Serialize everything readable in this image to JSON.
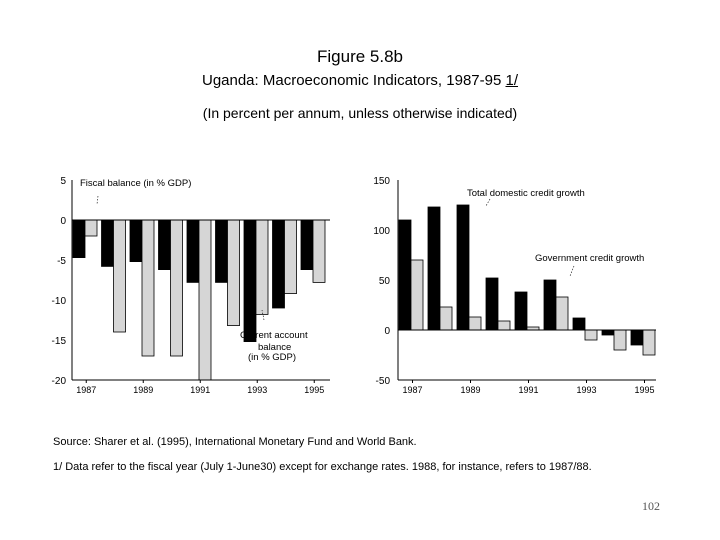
{
  "figure": {
    "title": "Figure 5.8b",
    "subtitle_text": "Uganda: Macroeconomic Indicators, 1987-95 ",
    "subtitle_note": "1/",
    "units_note": "(In percent per annum, unless otherwise indicated)",
    "source": "Source: Sharer et al. (1995), International Monetary Fund and World Bank.",
    "footnote": "1/  Data refer to the fiscal year (July 1-June30) except for exchange rates. 1988, for instance, refers to 1987/88.",
    "page_number": "102"
  },
  "colors": {
    "dark": "#000000",
    "light": "#d6d6d6",
    "axis": "#000000"
  },
  "chart_data": [
    {
      "type": "bar",
      "categories": [
        "1987",
        "1988",
        "1989",
        "1990",
        "1991",
        "1992",
        "1993",
        "1994",
        "1995"
      ],
      "x_tick_labels": [
        "1987",
        "1989",
        "1991",
        "1993",
        "1995"
      ],
      "ylim": [
        -20,
        5
      ],
      "y_ticks": [
        5,
        0,
        -5,
        -10,
        -15,
        -20
      ],
      "series": [
        {
          "name": "Fiscal balance (in % GDP)",
          "color": "dark",
          "values": [
            -4.7,
            -5.8,
            -5.2,
            -6.2,
            -7.8,
            -7.8,
            -15.2,
            -11,
            -6.2
          ]
        },
        {
          "name": "Current account balance (in % GDP)",
          "color": "light",
          "values": [
            -2,
            -14,
            -17,
            -17,
            -20,
            -13.2,
            -11.8,
            -9.2,
            -7.8
          ]
        }
      ],
      "annotations": [
        "Fiscal balance (in % GDP)",
        "Current account",
        "balance",
        "(in % GDP)"
      ]
    },
    {
      "type": "bar",
      "categories": [
        "1987",
        "1988",
        "1989",
        "1990",
        "1991",
        "1992",
        "1993",
        "1994",
        "1995"
      ],
      "x_tick_labels": [
        "1987",
        "1989",
        "1991",
        "1993",
        "1995"
      ],
      "ylim": [
        -50,
        150
      ],
      "y_ticks": [
        150,
        100,
        50,
        0,
        -50
      ],
      "series": [
        {
          "name": "Total domestic credit growth",
          "color": "dark",
          "values": [
            110,
            123,
            125,
            52,
            38,
            50,
            12,
            -5,
            -15
          ]
        },
        {
          "name": "Government credit growth",
          "color": "light",
          "values": [
            70,
            23,
            13,
            9,
            3,
            33,
            -10,
            -20,
            -25
          ]
        }
      ],
      "annotations": [
        "Total domestic credit growth",
        "Government credit  growth"
      ]
    }
  ]
}
